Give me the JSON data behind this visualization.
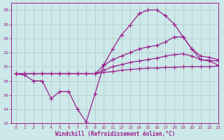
{
  "line1_x": [
    0,
    1,
    2,
    3,
    4,
    5,
    6,
    7,
    8,
    9,
    10,
    11,
    12,
    13,
    14,
    15,
    16,
    17,
    18,
    19,
    20,
    21,
    22,
    23
  ],
  "line1_y": [
    19.0,
    19.0,
    19.0,
    19.0,
    19.0,
    19.0,
    19.0,
    19.0,
    19.0,
    19.0,
    19.2,
    19.3,
    19.5,
    19.6,
    19.7,
    19.8,
    19.8,
    19.9,
    19.9,
    20.0,
    20.0,
    20.0,
    20.0,
    20.1
  ],
  "line2_x": [
    0,
    1,
    2,
    3,
    4,
    5,
    6,
    7,
    8,
    9,
    10,
    11,
    12,
    13,
    14,
    15,
    16,
    17,
    18,
    19,
    20,
    21,
    22,
    23
  ],
  "line2_y": [
    19.0,
    19.0,
    19.0,
    19.0,
    19.0,
    19.0,
    19.0,
    19.0,
    19.0,
    19.0,
    19.5,
    20.0,
    20.3,
    20.6,
    20.8,
    21.0,
    21.2,
    21.5,
    21.7,
    21.8,
    21.5,
    21.0,
    20.9,
    20.8
  ],
  "line3_x": [
    0,
    1,
    2,
    3,
    4,
    5,
    6,
    7,
    8,
    9,
    10,
    11,
    12,
    13,
    14,
    15,
    16,
    17,
    18,
    19,
    20,
    21,
    22,
    23
  ],
  "line3_y": [
    19.0,
    19.0,
    19.0,
    19.0,
    19.0,
    19.0,
    19.0,
    19.0,
    19.0,
    19.0,
    20.2,
    21.0,
    21.5,
    22.0,
    22.5,
    22.8,
    23.0,
    23.5,
    24.2,
    24.2,
    22.5,
    21.5,
    21.3,
    21.0
  ],
  "line4_x": [
    0,
    1,
    2,
    3,
    4,
    5,
    6,
    7,
    8,
    9,
    10,
    11,
    12,
    13,
    14,
    15,
    16,
    17,
    18,
    19,
    20,
    21,
    22,
    23
  ],
  "line4_y": [
    19.0,
    18.8,
    18.0,
    18.0,
    15.5,
    16.5,
    16.5,
    14.0,
    12.2,
    16.2,
    20.3,
    22.5,
    24.5,
    25.9,
    27.5,
    28.0,
    28.0,
    27.2,
    26.0,
    24.2,
    22.5,
    21.0,
    20.8,
    20.2
  ],
  "line_color": "#9b1c8c",
  "bg_color": "#cce8e8",
  "grid_color": "#b0c8c8",
  "xlabel": "Windchill (Refroidissement éolien,°C)",
  "ylim": [
    12,
    29
  ],
  "xlim": [
    -0.5,
    23
  ],
  "yticks": [
    12,
    14,
    16,
    18,
    20,
    22,
    24,
    26,
    28
  ],
  "xticks": [
    0,
    1,
    2,
    3,
    4,
    5,
    6,
    7,
    8,
    9,
    10,
    11,
    12,
    13,
    14,
    15,
    16,
    17,
    18,
    19,
    20,
    21,
    22,
    23
  ],
  "marker": "+",
  "markersize": 4,
  "linewidth": 0.9
}
